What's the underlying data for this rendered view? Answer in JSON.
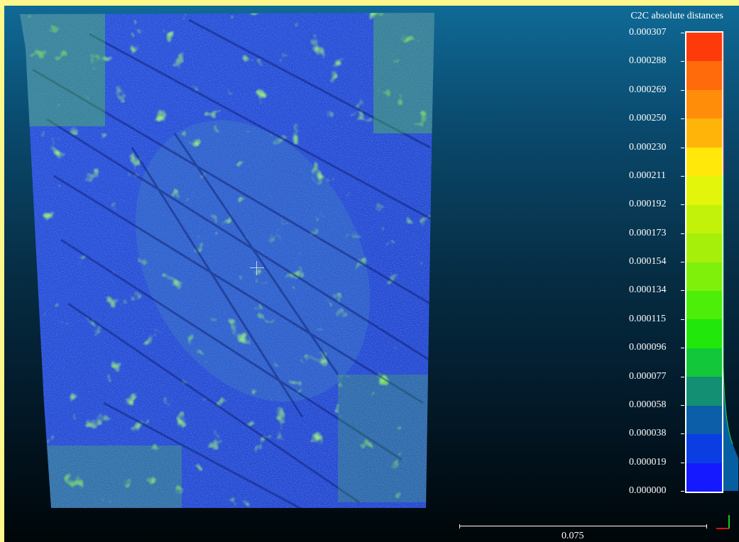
{
  "viewer": {
    "scalar_field_title": "C2C absolute distances",
    "colors": {
      "background_top": "#0f6a96",
      "background_bottom": "#000608",
      "border": "#fef88c"
    }
  },
  "color_scale": {
    "labels": [
      "0.000307",
      "0.000288",
      "0.000269",
      "0.000250",
      "0.000230",
      "0.000211",
      "0.000192",
      "0.000173",
      "0.000154",
      "0.000134",
      "0.000115",
      "0.000096",
      "0.000077",
      "0.000058",
      "0.000038",
      "0.000019",
      "0.000000"
    ],
    "bands_top_to_bottom": [
      "#ff3a0a",
      "#ff6a0a",
      "#ff8d0a",
      "#ffb40a",
      "#ffe80a",
      "#e3f50a",
      "#c2f20a",
      "#a6ef0a",
      "#7ef00a",
      "#4cee0a",
      "#21e80a",
      "#12c83a",
      "#138f73",
      "#0d5ea8",
      "#0a3ee3",
      "#1419ff"
    ]
  },
  "scale_bar": {
    "value": "0.075"
  }
}
